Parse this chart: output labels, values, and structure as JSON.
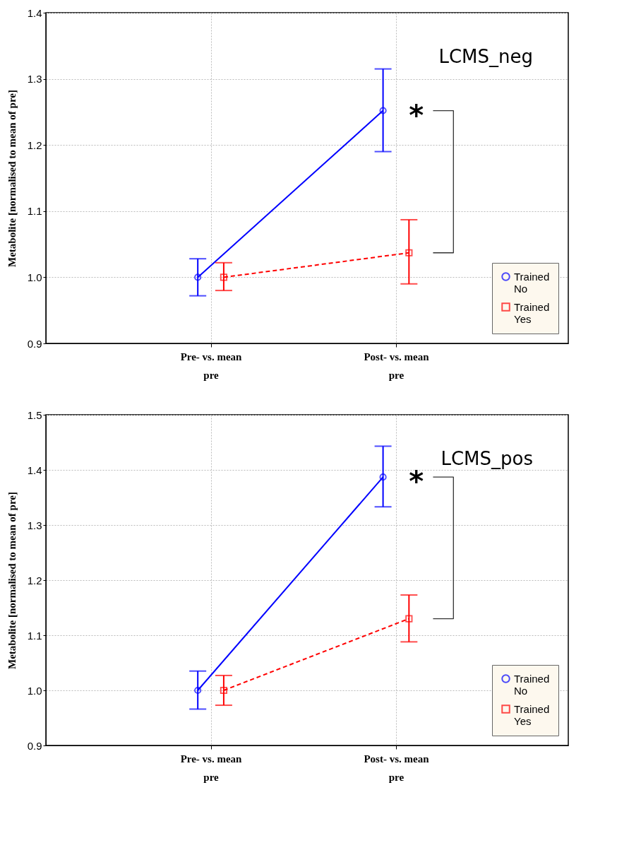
{
  "chart_data": [
    {
      "type": "line",
      "categories": [
        "Pre- vs. mean pre",
        "Post- vs. mean pre"
      ],
      "ylabel": "Metabolite [normalised to mean of pre]",
      "ylim": [
        0.9,
        1.4
      ],
      "yticks": [
        0.9,
        {
          "value": 1,
          "label": "1.0"
        },
        1.1,
        1.2,
        1.3,
        1.4
      ],
      "grid": true,
      "legend": "bottom right",
      "series": [
        {
          "name": "Trained No",
          "color": "#0000ff",
          "marker": "circle",
          "line_style": "solid",
          "values": [
            1.0,
            1.252
          ],
          "errors": [
            [
              0.972,
              1.028
            ],
            [
              1.19,
              1.315
            ]
          ]
        },
        {
          "name": "Trained Yes",
          "color": "#ff0000",
          "marker": "square",
          "line_style": "dashed",
          "values": [
            1.0,
            1.037
          ],
          "errors": [
            [
              0.98,
              1.022
            ],
            [
              0.99,
              1.087
            ]
          ]
        }
      ],
      "annotations": [
        "LCMS_neg",
        "*"
      ]
    },
    {
      "type": "line",
      "categories": [
        "Pre- vs. mean pre",
        "Post- vs. mean pre"
      ],
      "ylabel": "Metabolite [normalised to mean of pre]",
      "ylim": [
        0.9,
        1.5
      ],
      "yticks": [
        0.9,
        {
          "value": 1,
          "label": "1.0"
        },
        1.1,
        1.2,
        1.3,
        1.4,
        1.5
      ],
      "grid": true,
      "legend": "bottom right",
      "series": [
        {
          "name": "Trained No",
          "color": "#0000ff",
          "marker": "circle",
          "line_style": "solid",
          "values": [
            1.0,
            1.387
          ],
          "errors": [
            [
              0.966,
              1.035
            ],
            [
              1.333,
              1.443
            ]
          ]
        },
        {
          "name": "Trained Yes",
          "color": "#ff0000",
          "marker": "square",
          "line_style": "dashed",
          "values": [
            1.0,
            1.13
          ],
          "errors": [
            [
              0.973,
              1.027
            ],
            [
              1.088,
              1.173
            ]
          ]
        }
      ],
      "annotations": [
        "LCMS_pos",
        "*"
      ]
    }
  ]
}
